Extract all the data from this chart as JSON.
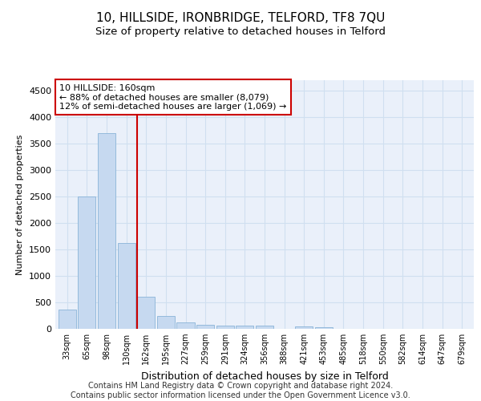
{
  "title": "10, HILLSIDE, IRONBRIDGE, TELFORD, TF8 7QU",
  "subtitle": "Size of property relative to detached houses in Telford",
  "xlabel": "Distribution of detached houses by size in Telford",
  "ylabel": "Number of detached properties",
  "categories": [
    "33sqm",
    "65sqm",
    "98sqm",
    "130sqm",
    "162sqm",
    "195sqm",
    "227sqm",
    "259sqm",
    "291sqm",
    "324sqm",
    "356sqm",
    "388sqm",
    "421sqm",
    "453sqm",
    "485sqm",
    "518sqm",
    "550sqm",
    "582sqm",
    "614sqm",
    "647sqm",
    "679sqm"
  ],
  "values": [
    370,
    2500,
    3700,
    1620,
    600,
    250,
    120,
    75,
    55,
    55,
    55,
    0,
    50,
    30,
    0,
    0,
    0,
    0,
    0,
    0,
    0
  ],
  "bar_color": "#c6d9f0",
  "bar_edge_color": "#8ab4d8",
  "vline_color": "#cc0000",
  "annotation_text": "10 HILLSIDE: 160sqm\n← 88% of detached houses are smaller (8,079)\n12% of semi-detached houses are larger (1,069) →",
  "annotation_box_color": "#cc0000",
  "ylim": [
    0,
    4700
  ],
  "yticks": [
    0,
    500,
    1000,
    1500,
    2000,
    2500,
    3000,
    3500,
    4000,
    4500
  ],
  "grid_color": "#d0dff0",
  "bg_color": "#eaf0fa",
  "footer_text": "Contains HM Land Registry data © Crown copyright and database right 2024.\nContains public sector information licensed under the Open Government Licence v3.0.",
  "title_fontsize": 11,
  "subtitle_fontsize": 9.5,
  "annotation_fontsize": 8,
  "footer_fontsize": 7,
  "ylabel_fontsize": 8,
  "xlabel_fontsize": 9
}
